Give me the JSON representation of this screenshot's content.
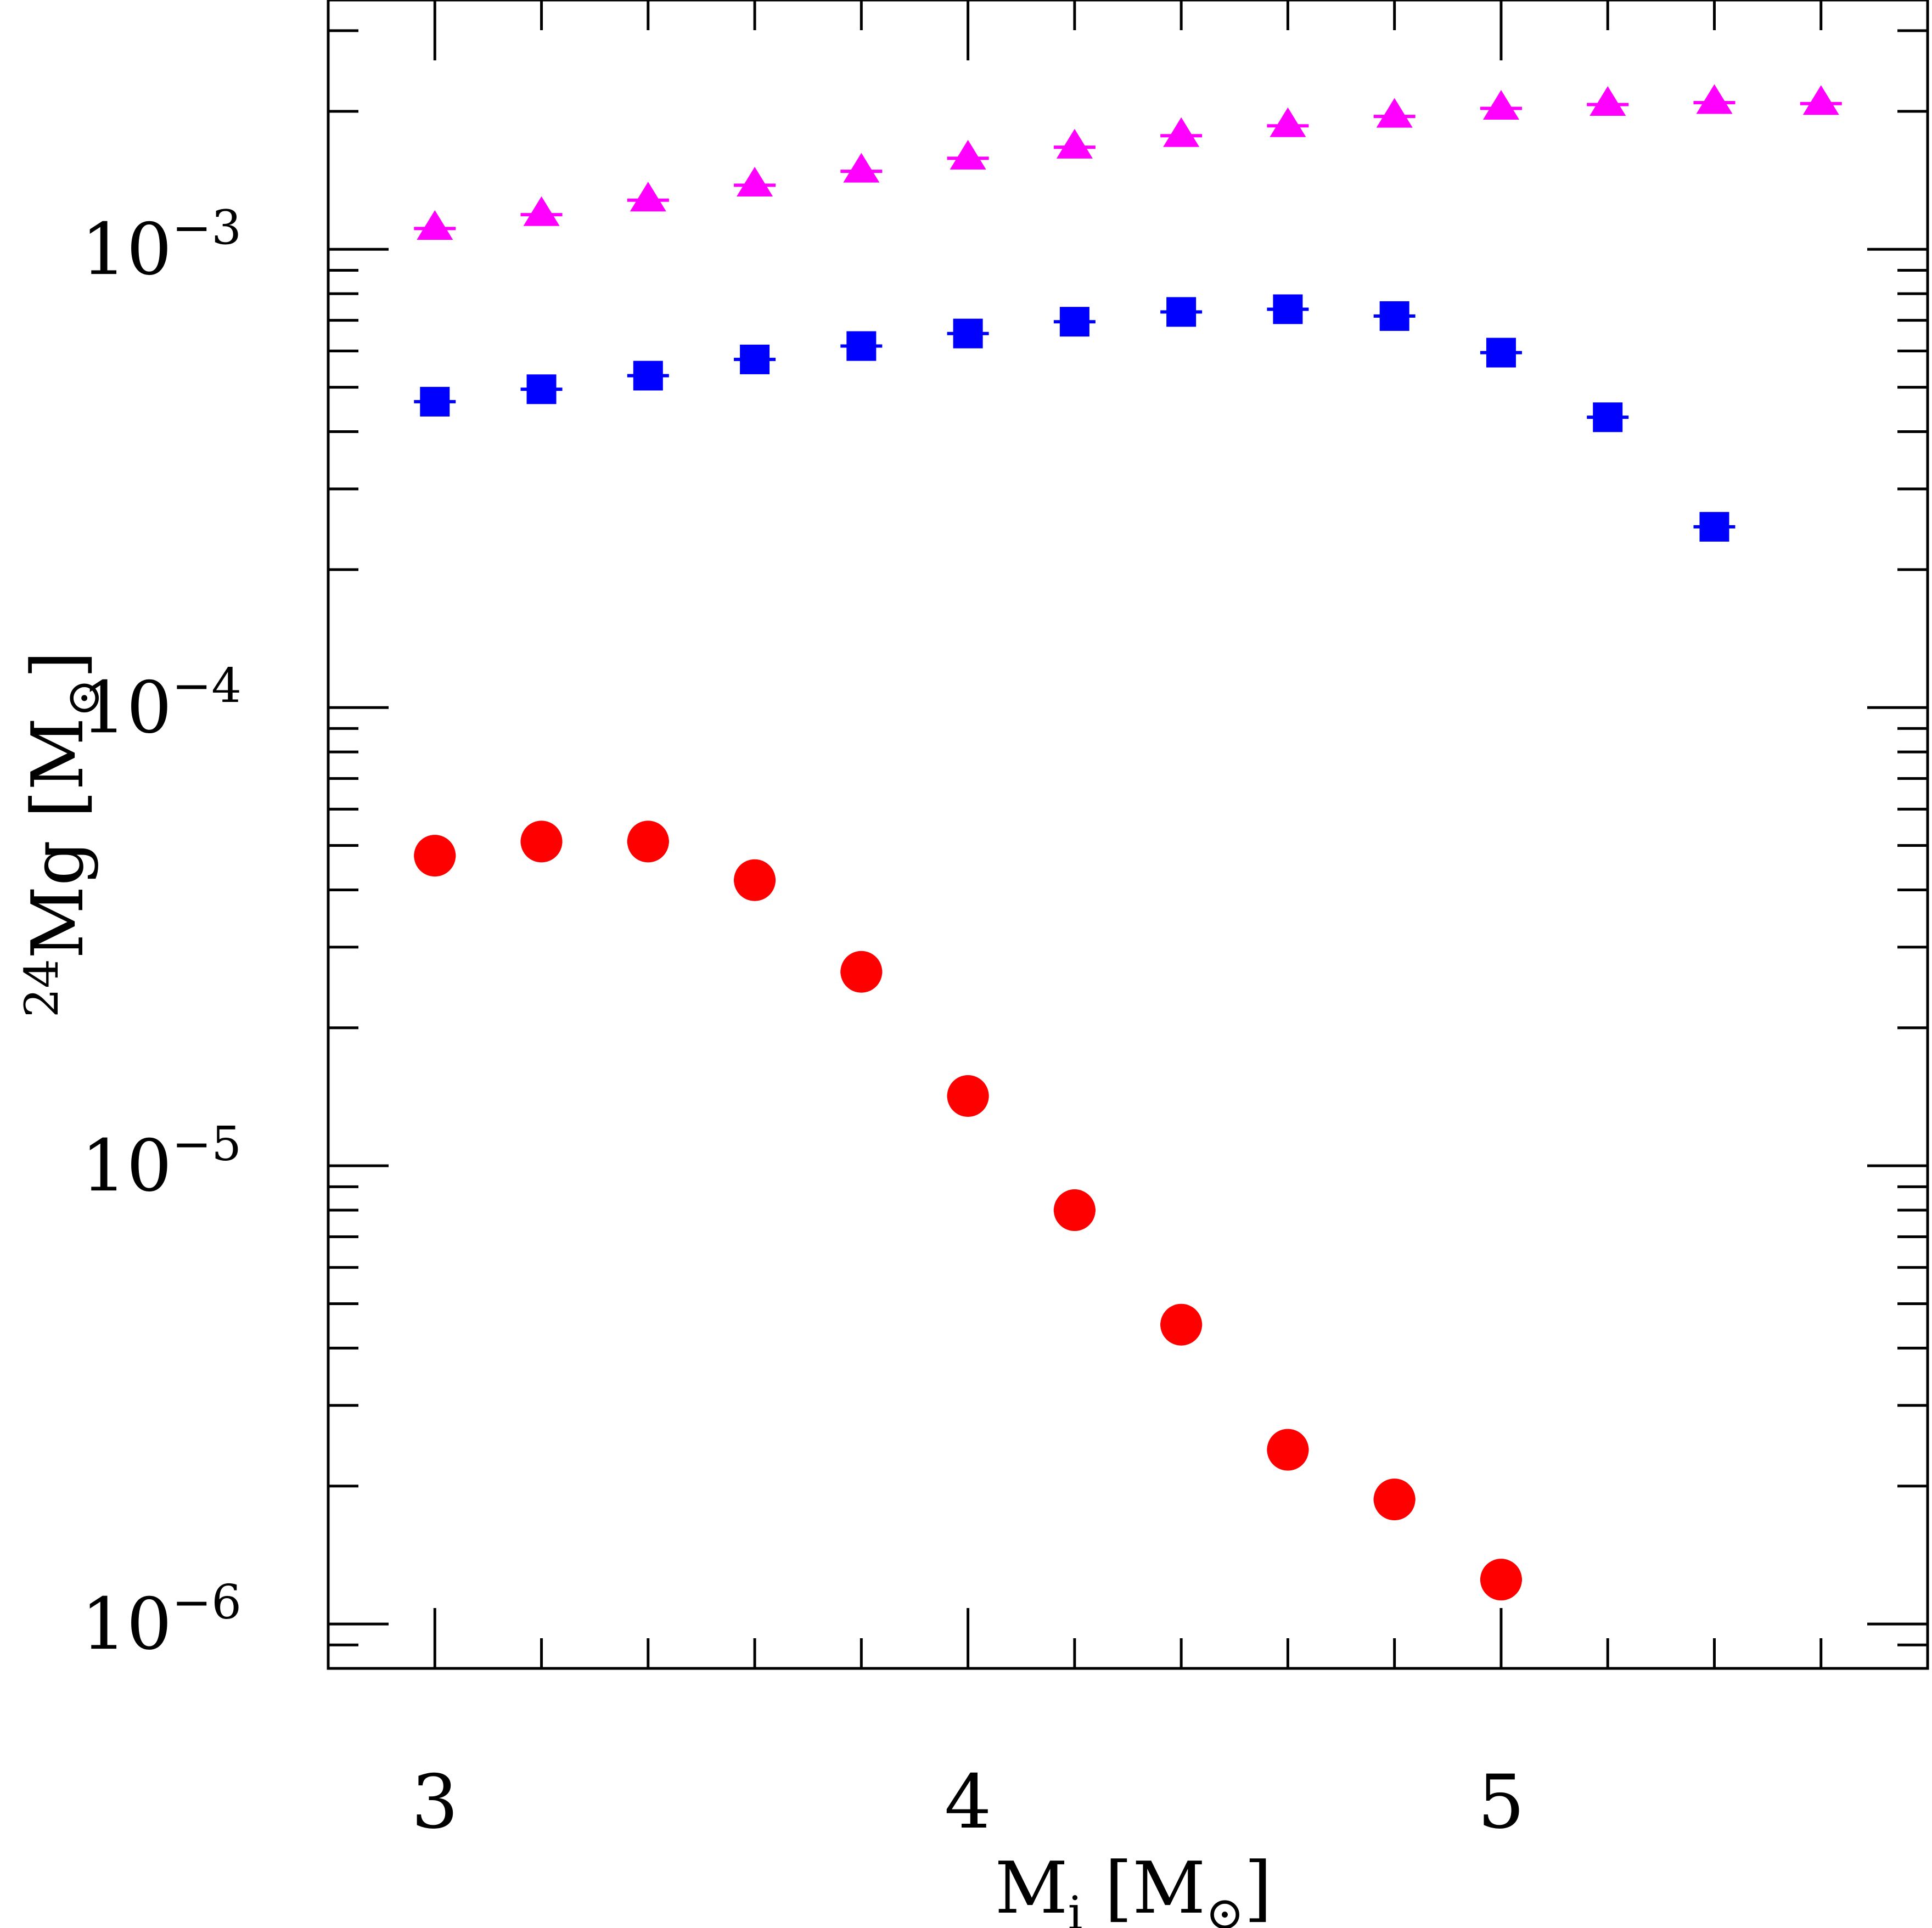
{
  "chart_data": {
    "type": "scatter",
    "title": "",
    "xlabel": {
      "main": "M",
      "sub": "i",
      "unit_main": "M",
      "unit_sub": "⊙"
    },
    "ylabel": {
      "sup": "24",
      "main": "Mg",
      "unit_main": "M",
      "unit_sub": "⊙"
    },
    "xlim": [
      2.8,
      5.8
    ],
    "ylim": [
      8e-07,
      0.0035
    ],
    "yscale": "log",
    "x_ticks": [
      {
        "value": 3,
        "label": "3"
      },
      {
        "value": 4,
        "label": "4"
      },
      {
        "value": 5,
        "label": "5"
      }
    ],
    "y_ticks": [
      {
        "value": 1e-06,
        "base": "10",
        "exp": "−6"
      },
      {
        "value": 1e-05,
        "base": "10",
        "exp": "−5"
      },
      {
        "value": 0.0001,
        "base": "10",
        "exp": "−4"
      },
      {
        "value": 0.001,
        "base": "10",
        "exp": "−3"
      }
    ],
    "series": [
      {
        "name": "triangles",
        "marker": "triangle",
        "color": "#ff00ff",
        "x": [
          3.0,
          3.2,
          3.4,
          3.6,
          3.8,
          4.0,
          4.2,
          4.4,
          4.6,
          4.8,
          5.0,
          5.2,
          5.4,
          5.6
        ],
        "y": [
          0.00111,
          0.00119,
          0.00128,
          0.00138,
          0.00148,
          0.00158,
          0.00167,
          0.00177,
          0.00186,
          0.00195,
          0.00203,
          0.00207,
          0.00209,
          0.00208
        ]
      },
      {
        "name": "squares",
        "marker": "square",
        "color": "#0000ff",
        "x": [
          3.0,
          3.2,
          3.4,
          3.6,
          3.8,
          4.0,
          4.2,
          4.4,
          4.6,
          4.8,
          5.0,
          5.2,
          5.4
        ],
        "y": [
          0.000465,
          0.000495,
          0.00053,
          0.000575,
          0.000615,
          0.000655,
          0.000695,
          0.00073,
          0.00074,
          0.000715,
          0.000595,
          0.00043,
          0.000248
        ]
      },
      {
        "name": "circles",
        "marker": "circle",
        "color": "#ff0000",
        "x": [
          3.0,
          3.2,
          3.4,
          3.6,
          3.8,
          4.0,
          4.2,
          4.4,
          4.6,
          4.8,
          5.0
        ],
        "y": [
          4.75e-05,
          5.1e-05,
          5.1e-05,
          4.2e-05,
          2.65e-05,
          1.42e-05,
          8e-06,
          4.5e-06,
          2.4e-06,
          1.87e-06,
          1.25e-06
        ]
      }
    ]
  }
}
